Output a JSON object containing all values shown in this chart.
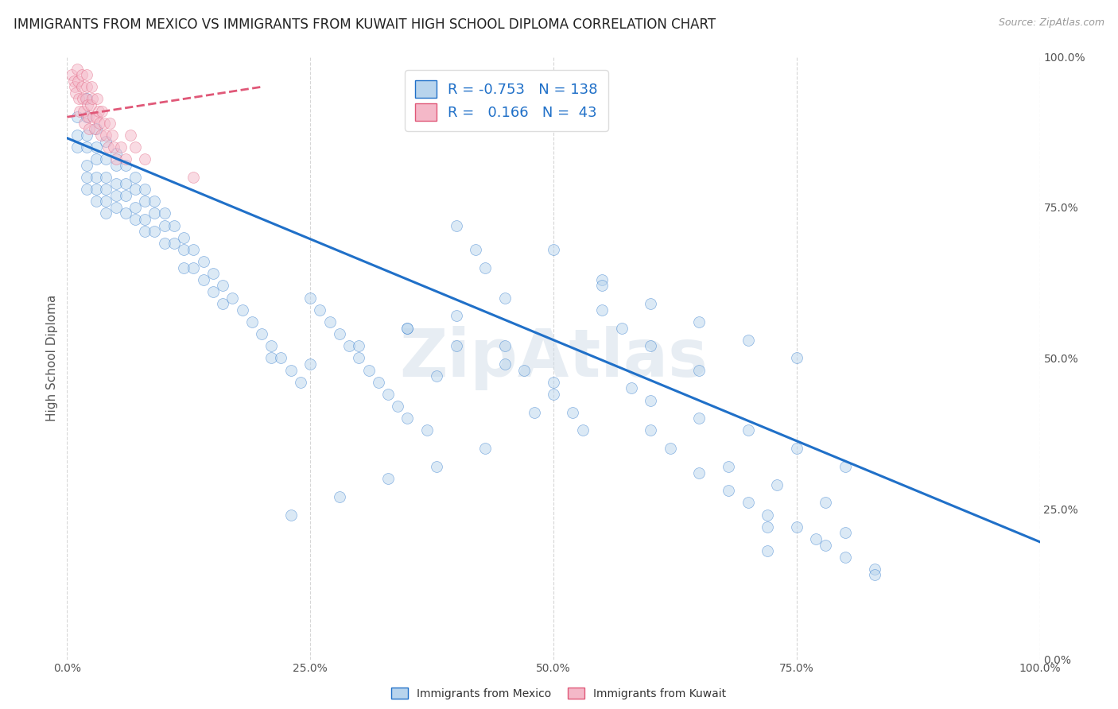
{
  "title": "IMMIGRANTS FROM MEXICO VS IMMIGRANTS FROM KUWAIT HIGH SCHOOL DIPLOMA CORRELATION CHART",
  "source": "Source: ZipAtlas.com",
  "ylabel": "High School Diploma",
  "watermark": "ZipAtlas",
  "legend": {
    "mexico": {
      "R": "-0.753",
      "N": "138",
      "label": "Immigrants from Mexico",
      "color": "#b8d4ed",
      "line_color": "#2070c8"
    },
    "kuwait": {
      "R": "0.166",
      "N": "43",
      "label": "Immigrants from Kuwait",
      "color": "#f4b8c8",
      "line_color": "#e05878"
    }
  },
  "blue_scatter_x": [
    0.01,
    0.01,
    0.01,
    0.02,
    0.02,
    0.02,
    0.02,
    0.02,
    0.02,
    0.02,
    0.03,
    0.03,
    0.03,
    0.03,
    0.03,
    0.03,
    0.04,
    0.04,
    0.04,
    0.04,
    0.04,
    0.04,
    0.05,
    0.05,
    0.05,
    0.05,
    0.05,
    0.06,
    0.06,
    0.06,
    0.06,
    0.07,
    0.07,
    0.07,
    0.07,
    0.08,
    0.08,
    0.08,
    0.08,
    0.09,
    0.09,
    0.09,
    0.1,
    0.1,
    0.1,
    0.11,
    0.11,
    0.12,
    0.12,
    0.12,
    0.13,
    0.13,
    0.14,
    0.14,
    0.15,
    0.15,
    0.16,
    0.16,
    0.17,
    0.18,
    0.19,
    0.2,
    0.21,
    0.21,
    0.22,
    0.23,
    0.24,
    0.25,
    0.26,
    0.27,
    0.28,
    0.29,
    0.3,
    0.31,
    0.32,
    0.33,
    0.34,
    0.35,
    0.37,
    0.38,
    0.4,
    0.42,
    0.43,
    0.45,
    0.47,
    0.5,
    0.52,
    0.55,
    0.57,
    0.6,
    0.62,
    0.65,
    0.68,
    0.7,
    0.72,
    0.75,
    0.78,
    0.8,
    0.83,
    0.6,
    0.65,
    0.5,
    0.55,
    0.45,
    0.4,
    0.35,
    0.3,
    0.25,
    0.58,
    0.48,
    0.53,
    0.43,
    0.38,
    0.33,
    0.28,
    0.23,
    0.68,
    0.73,
    0.78,
    0.83,
    0.72,
    0.6,
    0.65,
    0.7,
    0.75,
    0.8,
    0.35,
    0.4,
    0.45,
    0.5,
    0.55,
    0.6,
    0.65,
    0.7,
    0.75,
    0.8,
    0.72,
    0.77
  ],
  "blue_scatter_y": [
    0.9,
    0.87,
    0.85,
    0.93,
    0.9,
    0.87,
    0.85,
    0.82,
    0.8,
    0.78,
    0.88,
    0.85,
    0.83,
    0.8,
    0.78,
    0.76,
    0.86,
    0.83,
    0.8,
    0.78,
    0.76,
    0.74,
    0.84,
    0.82,
    0.79,
    0.77,
    0.75,
    0.82,
    0.79,
    0.77,
    0.74,
    0.8,
    0.78,
    0.75,
    0.73,
    0.78,
    0.76,
    0.73,
    0.71,
    0.76,
    0.74,
    0.71,
    0.74,
    0.72,
    0.69,
    0.72,
    0.69,
    0.7,
    0.68,
    0.65,
    0.68,
    0.65,
    0.66,
    0.63,
    0.64,
    0.61,
    0.62,
    0.59,
    0.6,
    0.58,
    0.56,
    0.54,
    0.52,
    0.5,
    0.5,
    0.48,
    0.46,
    0.6,
    0.58,
    0.56,
    0.54,
    0.52,
    0.5,
    0.48,
    0.46,
    0.44,
    0.42,
    0.4,
    0.38,
    0.47,
    0.72,
    0.68,
    0.65,
    0.52,
    0.48,
    0.44,
    0.41,
    0.58,
    0.55,
    0.38,
    0.35,
    0.31,
    0.28,
    0.26,
    0.24,
    0.22,
    0.19,
    0.17,
    0.15,
    0.52,
    0.48,
    0.68,
    0.63,
    0.6,
    0.57,
    0.55,
    0.52,
    0.49,
    0.45,
    0.41,
    0.38,
    0.35,
    0.32,
    0.3,
    0.27,
    0.24,
    0.32,
    0.29,
    0.26,
    0.14,
    0.22,
    0.43,
    0.4,
    0.38,
    0.35,
    0.32,
    0.55,
    0.52,
    0.49,
    0.46,
    0.62,
    0.59,
    0.56,
    0.53,
    0.5,
    0.21,
    0.18,
    0.2
  ],
  "pink_scatter_x": [
    0.005,
    0.007,
    0.008,
    0.009,
    0.01,
    0.011,
    0.012,
    0.013,
    0.015,
    0.015,
    0.016,
    0.017,
    0.018,
    0.019,
    0.02,
    0.02,
    0.021,
    0.022,
    0.023,
    0.024,
    0.025,
    0.026,
    0.027,
    0.028,
    0.03,
    0.031,
    0.032,
    0.033,
    0.035,
    0.036,
    0.038,
    0.04,
    0.042,
    0.044,
    0.046,
    0.048,
    0.05,
    0.055,
    0.06,
    0.065,
    0.07,
    0.08,
    0.13
  ],
  "pink_scatter_y": [
    0.97,
    0.96,
    0.95,
    0.94,
    0.98,
    0.96,
    0.93,
    0.91,
    0.97,
    0.95,
    0.93,
    0.91,
    0.89,
    0.93,
    0.97,
    0.95,
    0.92,
    0.9,
    0.88,
    0.92,
    0.95,
    0.93,
    0.9,
    0.88,
    0.9,
    0.93,
    0.91,
    0.89,
    0.87,
    0.91,
    0.89,
    0.87,
    0.85,
    0.89,
    0.87,
    0.85,
    0.83,
    0.85,
    0.83,
    0.87,
    0.85,
    0.83,
    0.8
  ],
  "blue_line": {
    "x0": 0.0,
    "y0": 0.865,
    "x1": 1.0,
    "y1": 0.195
  },
  "pink_line": {
    "x0": 0.0,
    "y0": 0.9,
    "x1": 0.2,
    "y1": 0.95
  },
  "xlim": [
    0.0,
    1.0
  ],
  "ylim": [
    0.0,
    1.0
  ],
  "yticks": [
    0.0,
    0.25,
    0.5,
    0.75,
    1.0
  ],
  "xticks": [
    0.0,
    0.25,
    0.5,
    0.75,
    1.0
  ],
  "grid_color": "#cccccc",
  "bg_color": "#ffffff",
  "scatter_size": 100,
  "scatter_alpha": 0.5,
  "title_fontsize": 12,
  "axis_fontsize": 11,
  "legend_fontsize": 13
}
